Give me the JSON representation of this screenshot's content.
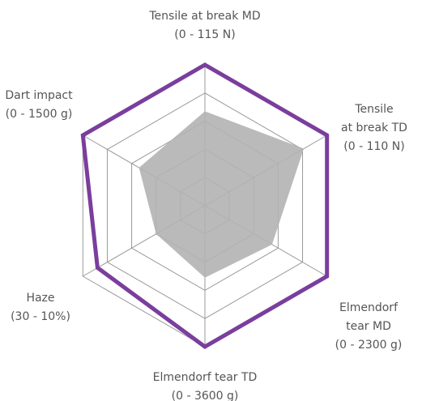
{
  "chart_data": {
    "type": "radar",
    "categories": [
      [
        "Tensile at break MD",
        "(0 - 115 N)"
      ],
      [
        "Tensile",
        "at break TD",
        "(0 - 110 N)"
      ],
      [
        "Elmendorf",
        "tear MD",
        "(0 - 2300 g)"
      ],
      [
        "Elmendorf tear TD",
        "(0 - 3600 g)"
      ],
      [
        "Haze",
        "(30 - 10%)"
      ],
      [
        "Dart impact",
        "(0 - 1500 g)"
      ]
    ],
    "rlim": [
      0,
      1
    ],
    "rticks": [
      0.2,
      0.4,
      0.6,
      0.8,
      1
    ],
    "grid": true,
    "series": [
      {
        "color": "#b3b3b3",
        "fill": true,
        "values": [
          0.67,
          0.81,
          0.55,
          0.51,
          0.4,
          0.54
        ]
      },
      {
        "color": "#7a3e9d",
        "fill": false,
        "values": [
          1.0,
          1.0,
          1.0,
          1.0,
          0.88,
          1.0
        ]
      }
    ]
  }
}
